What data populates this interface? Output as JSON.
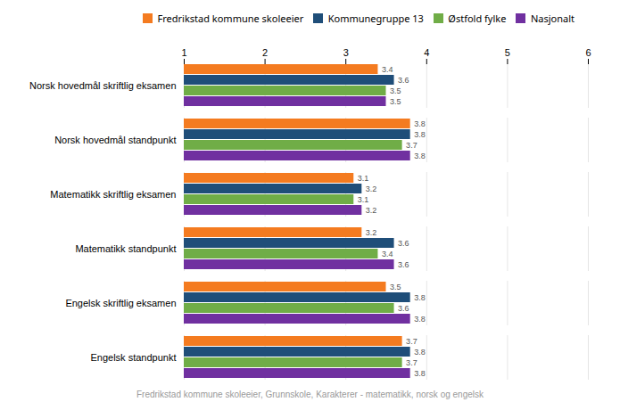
{
  "chart_data": {
    "type": "bar",
    "orientation": "horizontal",
    "categories": [
      "Norsk hovedmål skriftlig eksamen",
      "Norsk hovedmål standpunkt",
      "Matematikk skriftlig eksamen",
      "Matematikk standpunkt",
      "Engelsk skriftlig eksamen",
      "Engelsk standpunkt"
    ],
    "series": [
      {
        "name": "Fredrikstad kommune skoleeier",
        "color": "#F47B20",
        "values": [
          3.4,
          3.8,
          3.1,
          3.2,
          3.5,
          3.7
        ]
      },
      {
        "name": "Kommunegruppe 13",
        "color": "#1F4E79",
        "values": [
          3.6,
          3.8,
          3.2,
          3.6,
          3.8,
          3.8
        ]
      },
      {
        "name": "Østfold fylke",
        "color": "#70AD47",
        "values": [
          3.5,
          3.7,
          3.1,
          3.4,
          3.6,
          3.7
        ]
      },
      {
        "name": "Nasjonalt",
        "color": "#7030A0",
        "values": [
          3.5,
          3.8,
          3.2,
          3.6,
          3.8,
          3.8
        ]
      }
    ],
    "xlim": [
      1,
      6
    ],
    "xticks": [
      1,
      2,
      3,
      4,
      5,
      6
    ],
    "grid": true,
    "legend": "top",
    "data_labels": true,
    "caption": "Fredrikstad kommune skoleeier, Grunnskole, Karakterer - matematikk, norsk og engelsk"
  }
}
